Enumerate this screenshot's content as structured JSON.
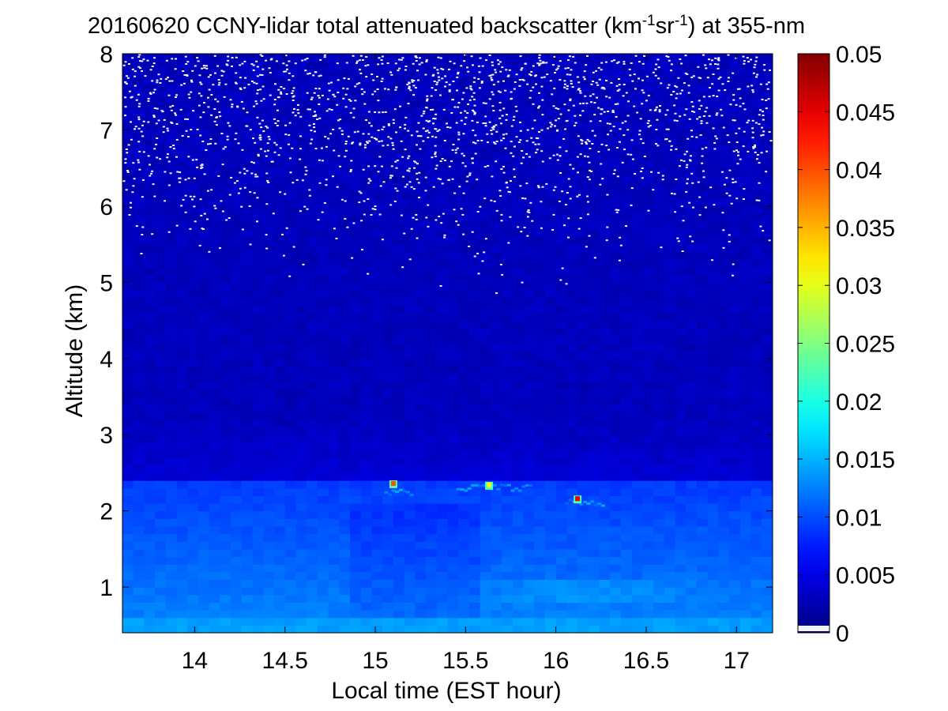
{
  "chart_data": {
    "type": "heatmap",
    "title": {
      "prefix": "20160620 CCNY-lidar total attenuated backscatter (km",
      "sup1": "-1",
      "middle": "sr",
      "sup2": "-1",
      "suffix": ") at 355-nm"
    },
    "xlabel": "Local time (EST hour)",
    "ylabel": "Altitude (km)",
    "xlim": [
      13.6,
      17.2
    ],
    "ylim": [
      0.4,
      8
    ],
    "xticks": [
      14,
      14.5,
      15,
      15.5,
      16,
      16.5,
      17
    ],
    "xtick_labels": [
      "14",
      "14.5",
      "15",
      "15.5",
      "16",
      "16.5",
      "17"
    ],
    "yticks": [
      1,
      2,
      3,
      4,
      5,
      6,
      7,
      8
    ],
    "ytick_labels": [
      "1",
      "2",
      "3",
      "4",
      "5",
      "6",
      "7",
      "8"
    ],
    "colorbar": {
      "colormap": "jet",
      "range": [
        0,
        0.05
      ],
      "ticks": [
        0,
        0.005,
        0.01,
        0.015,
        0.02,
        0.025,
        0.03,
        0.035,
        0.04,
        0.045,
        0.05
      ],
      "tick_labels": [
        "0",
        "0.005",
        "0.01",
        "0.015",
        "0.02",
        "0.025",
        "0.03",
        "0.035",
        "0.04",
        "0.045",
        "0.05"
      ]
    },
    "features": {
      "aerosol_layer_top_km": 2.4,
      "near_surface_value": 0.013,
      "boundary_layer_value": 0.009,
      "free_troposphere_value": 0.003,
      "noise_onset_km": 5.5,
      "cloud_hotspots": [
        {
          "time": 15.1,
          "altitude_km": 2.35,
          "value": 0.04
        },
        {
          "time": 15.63,
          "altitude_km": 2.33,
          "value": 0.03
        },
        {
          "time": 16.12,
          "altitude_km": 2.15,
          "value": 0.045
        }
      ]
    }
  }
}
